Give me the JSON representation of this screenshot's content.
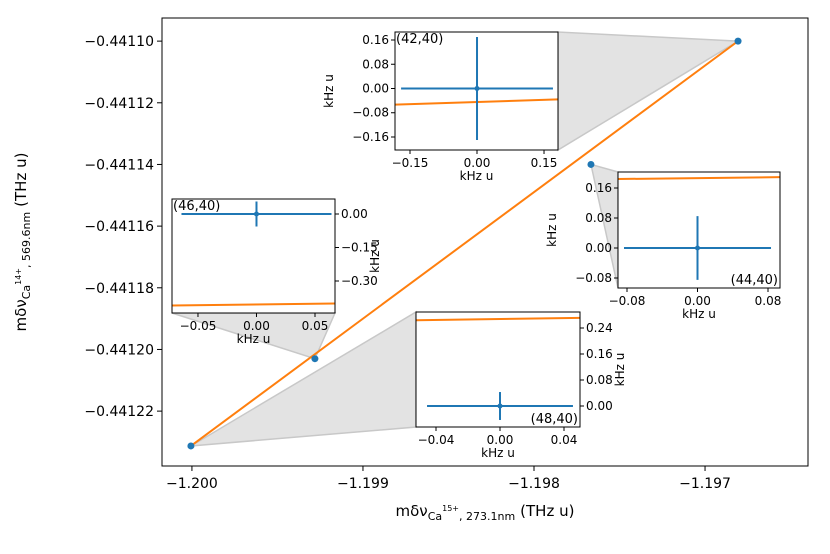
{
  "chart_data": [
    {
      "type": "scatter",
      "xlabel": {
        "symbol": "mδν",
        "species": "Ca",
        "charge": "15+",
        "line": ", 273.1nm",
        "unit": "(THz u)"
      },
      "ylabel": {
        "symbol": "mδν",
        "species": "Ca",
        "charge": "14+",
        "line": ", 569.6nm",
        "unit": "(THz u)"
      },
      "xlim": [
        -1.200175,
        -1.196398
      ],
      "ylim": [
        -0.4412378,
        -0.4410925
      ],
      "xticks": [
        {
          "value": -1.2,
          "label": "−1.200"
        },
        {
          "value": -1.199,
          "label": "−1.199"
        },
        {
          "value": -1.198,
          "label": "−1.198"
        },
        {
          "value": -1.197,
          "label": "−1.197"
        }
      ],
      "yticks": [
        {
          "value": -0.4411,
          "label": "−0.44110"
        },
        {
          "value": -0.44112,
          "label": "−0.44112"
        },
        {
          "value": -0.44114,
          "label": "−0.44114"
        },
        {
          "value": -0.44116,
          "label": "−0.44116"
        },
        {
          "value": -0.44118,
          "label": "−0.44118"
        },
        {
          "value": -0.4412,
          "label": "−0.44120"
        },
        {
          "value": -0.44122,
          "label": "−0.44122"
        }
      ],
      "points": {
        "x": [
          -1.196807,
          -1.197667,
          -1.199281,
          -1.200006
        ],
        "y": [
          -0.4411,
          -0.44114,
          -0.441203,
          -0.4412313
        ],
        "color": "#1f77b4"
      },
      "fit": {
        "x": [
          -1.200006,
          -1.196807
        ],
        "y": [
          -0.4412313,
          -0.4411
        ],
        "color": "#ff7f0e"
      }
    },
    {
      "type": "errorbar",
      "label": "(42,40)",
      "label_corner": "upper left",
      "yaxis_side": "left",
      "xlabel": "kHz u",
      "ylabel": "kHz u",
      "xlim": [
        -0.1836,
        0.1813
      ],
      "ylim": [
        -0.2029,
        0.1864
      ],
      "xticks": [
        {
          "value": -0.15,
          "label": "−0.15"
        },
        {
          "value": 0,
          "label": "0.00"
        },
        0.15
      ],
      "yticks": [
        0.16,
        0.08,
        {
          "value": 0,
          "label": "0.00"
        },
        {
          "value": -0.08,
          "label": "−0.08"
        },
        {
          "value": -0.16,
          "label": "−0.16"
        }
      ],
      "x": [
        0
      ],
      "y": [
        0
      ],
      "xerr": [
        0.17
      ],
      "yerr": [
        0.17
      ],
      "color": "#1f77b4",
      "fit": {
        "x": [
          -0.1836,
          0.1813
        ],
        "y": [
          -0.053,
          -0.036
        ],
        "color": "#ff7f0e"
      }
    },
    {
      "type": "errorbar",
      "label": "(44,40)",
      "label_corner": "lower right",
      "yaxis_side": "left",
      "xlabel": "kHz u",
      "ylabel": "kHz u",
      "xlim": [
        -0.0902,
        0.0936
      ],
      "ylim": [
        -0.1067,
        0.2027
      ],
      "xticks": [
        {
          "value": -0.08,
          "label": "−0.08"
        },
        {
          "value": 0,
          "label": "0.00"
        },
        0.08
      ],
      "yticks": [
        0.16,
        0.08,
        {
          "value": 0,
          "label": "0.00"
        },
        {
          "value": -0.08,
          "label": "−0.08"
        }
      ],
      "x": [
        0
      ],
      "y": [
        0
      ],
      "xerr": [
        0.0834
      ],
      "yerr": [
        0.085
      ],
      "color": "#1f77b4",
      "fit": {
        "x": [
          -0.0902,
          0.0936
        ],
        "y": [
          0.184,
          0.189
        ],
        "color": "#ff7f0e"
      }
    },
    {
      "type": "errorbar",
      "label": "(46,40)",
      "label_corner": "upper left",
      "yaxis_side": "right",
      "xlabel": "kHz u",
      "ylabel": "kHz u",
      "xlim": [
        -0.0722,
        0.0671
      ],
      "ylim": [
        -0.4433,
        0.0672
      ],
      "xticks": [
        {
          "value": -0.05,
          "label": "−0.05"
        },
        {
          "value": 0,
          "label": "0.00"
        },
        0.05
      ],
      "yticks": [
        {
          "value": 0,
          "label": "0.00"
        },
        {
          "value": -0.15,
          "label": "−0.15"
        },
        {
          "value": -0.3,
          "label": "−0.30"
        }
      ],
      "x": [
        0
      ],
      "y": [
        0
      ],
      "xerr": [
        0.0641
      ],
      "yerr": [
        0.056
      ],
      "color": "#1f77b4",
      "fit": {
        "x": [
          -0.0722,
          0.0671
        ],
        "y": [
          -0.4097,
          -0.4007
        ],
        "color": "#ff7f0e"
      }
    },
    {
      "type": "errorbar",
      "label": "(48,40)",
      "label_corner": "lower right",
      "yaxis_side": "right",
      "xlabel": "kHz u",
      "ylabel": "kHz u",
      "xlim": [
        -0.0525,
        0.05
      ],
      "ylim": [
        -0.0646,
        0.2892
      ],
      "xticks": [
        {
          "value": -0.04,
          "label": "−0.04"
        },
        {
          "value": 0,
          "label": "0.00"
        },
        0.04
      ],
      "yticks": [
        0.24,
        0.16,
        0.08,
        {
          "value": 0,
          "label": "0.00"
        }
      ],
      "x": [
        0
      ],
      "y": [
        0
      ],
      "xerr": [
        0.0456
      ],
      "yerr": [
        0.043
      ],
      "color": "#1f77b4",
      "fit": {
        "x": [
          -0.0525,
          0.05
        ],
        "y": [
          0.264,
          0.271
        ],
        "color": "#ff7f0e"
      }
    }
  ]
}
